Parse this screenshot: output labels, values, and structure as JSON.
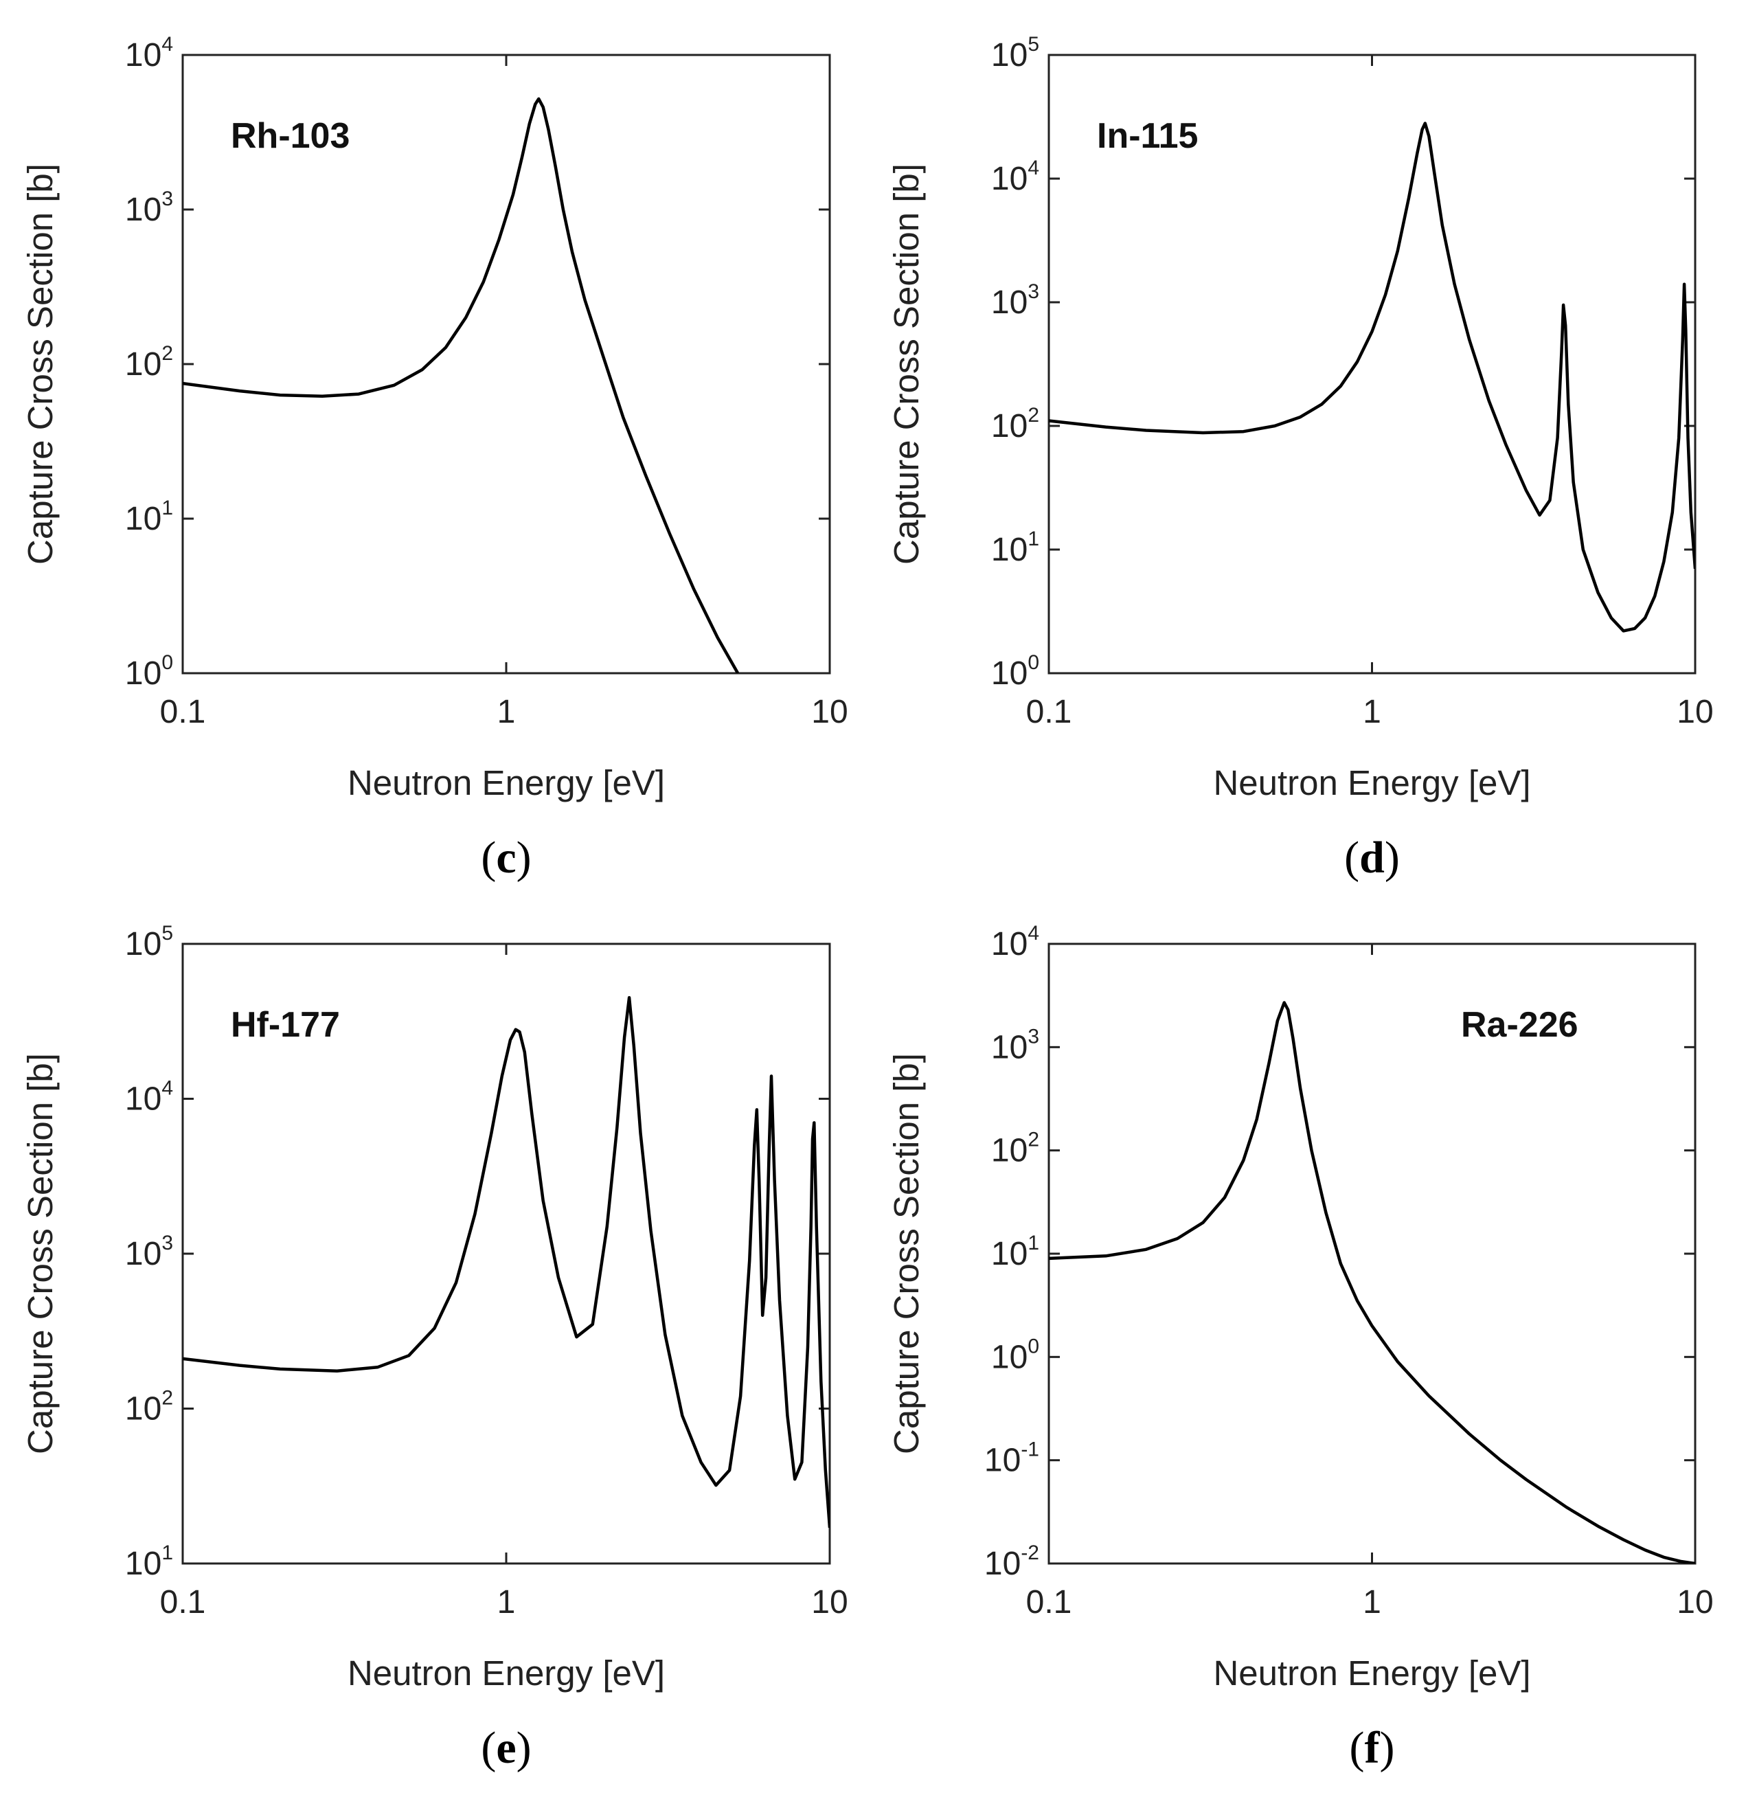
{
  "chart_data": [
    {
      "type": "line",
      "panel": "(c)",
      "panel_letter": "c",
      "nuclide": "Rh-103",
      "nuclide_position": "top-left",
      "xlabel": "Neutron Energy [eV]",
      "ylabel": "Capture Cross Section [b]",
      "xscale": "log",
      "yscale": "log",
      "xlim": [
        0.1,
        10
      ],
      "ylim": [
        1,
        10000
      ],
      "x_ticks": [
        0.1,
        1,
        10
      ],
      "x_tick_labels": [
        "0.1",
        "1",
        "10"
      ],
      "y_tick_exponents": [
        0,
        1,
        2,
        3,
        4
      ],
      "y_tick_labels": [
        "10^0",
        "10^1",
        "10^2",
        "10^3",
        "10^4"
      ],
      "color": "#000000",
      "series": [
        {
          "name": "Rh-103",
          "x": [
            0.1,
            0.15,
            0.2,
            0.27,
            0.35,
            0.45,
            0.55,
            0.65,
            0.75,
            0.85,
            0.95,
            1.05,
            1.12,
            1.18,
            1.23,
            1.26,
            1.3,
            1.35,
            1.42,
            1.5,
            1.6,
            1.75,
            2.0,
            2.3,
            2.7,
            3.2,
            3.8,
            4.5,
            5.2
          ],
          "y": [
            75,
            67,
            63,
            62,
            64,
            73,
            92,
            128,
            200,
            340,
            640,
            1250,
            2200,
            3600,
            4800,
            5200,
            4600,
            3300,
            1900,
            1000,
            530,
            260,
            110,
            45,
            19,
            8.0,
            3.5,
            1.7,
            1.0
          ]
        }
      ]
    },
    {
      "type": "line",
      "panel": "(d)",
      "panel_letter": "d",
      "nuclide": "In-115",
      "nuclide_position": "top-left",
      "xlabel": "Neutron Energy [eV]",
      "ylabel": "Capture Cross Section [b]",
      "xscale": "log",
      "yscale": "log",
      "xlim": [
        0.1,
        10
      ],
      "ylim": [
        1,
        100000
      ],
      "x_ticks": [
        0.1,
        1,
        10
      ],
      "x_tick_labels": [
        "0.1",
        "1",
        "10"
      ],
      "y_tick_exponents": [
        0,
        1,
        2,
        3,
        4,
        5
      ],
      "y_tick_labels": [
        "10^0",
        "10^1",
        "10^2",
        "10^3",
        "10^4",
        "10^5"
      ],
      "color": "#000000",
      "series": [
        {
          "name": "In-115",
          "x": [
            0.1,
            0.15,
            0.2,
            0.3,
            0.4,
            0.5,
            0.6,
            0.7,
            0.8,
            0.9,
            1.0,
            1.1,
            1.2,
            1.3,
            1.38,
            1.43,
            1.46,
            1.5,
            1.56,
            1.65,
            1.8,
            2.0,
            2.3,
            2.6,
            3.0,
            3.3,
            3.55,
            3.75,
            3.86,
            3.91,
            3.97,
            4.05,
            4.2,
            4.5,
            5.0,
            5.5,
            6.0,
            6.5,
            7.0,
            7.5,
            8.0,
            8.5,
            8.9,
            9.15,
            9.25,
            9.35,
            9.5,
            9.7,
            10.0
          ],
          "y": [
            110,
            98,
            92,
            88,
            90,
            100,
            118,
            150,
            210,
            330,
            580,
            1150,
            2600,
            7000,
            16000,
            25000,
            28000,
            22000,
            11000,
            4200,
            1400,
            500,
            160,
            70,
            30,
            19,
            25,
            80,
            400,
            950,
            650,
            150,
            35,
            10,
            4.5,
            2.8,
            2.2,
            2.3,
            2.8,
            4.2,
            8,
            20,
            80,
            500,
            1400,
            600,
            80,
            20,
            7
          ]
        }
      ]
    },
    {
      "type": "line",
      "panel": "(e)",
      "panel_letter": "e",
      "nuclide": "Hf-177",
      "nuclide_position": "top-left",
      "xlabel": "Neutron Energy [eV]",
      "ylabel": "Capture Cross Section [b]",
      "xscale": "log",
      "yscale": "log",
      "xlim": [
        0.1,
        10
      ],
      "ylim": [
        10,
        100000
      ],
      "x_ticks": [
        0.1,
        1,
        10
      ],
      "x_tick_labels": [
        "0.1",
        "1",
        "10"
      ],
      "y_tick_exponents": [
        1,
        2,
        3,
        4,
        5
      ],
      "y_tick_labels": [
        "10^1",
        "10^2",
        "10^3",
        "10^4",
        "10^5"
      ],
      "color": "#000000",
      "series": [
        {
          "name": "Hf-177",
          "x": [
            0.1,
            0.15,
            0.2,
            0.3,
            0.4,
            0.5,
            0.6,
            0.7,
            0.8,
            0.9,
            0.97,
            1.03,
            1.07,
            1.1,
            1.14,
            1.2,
            1.3,
            1.45,
            1.65,
            1.85,
            2.05,
            2.2,
            2.32,
            2.4,
            2.48,
            2.6,
            2.8,
            3.1,
            3.5,
            4.0,
            4.45,
            4.9,
            5.3,
            5.65,
            5.85,
            5.95,
            6.05,
            6.2,
            6.35,
            6.5,
            6.6,
            6.75,
            7.0,
            7.4,
            7.8,
            8.2,
            8.55,
            8.75,
            8.85,
            8.95,
            9.1,
            9.4,
            9.7,
            10.0
          ],
          "y": [
            210,
            190,
            180,
            175,
            185,
            220,
            330,
            650,
            1800,
            6000,
            14000,
            24000,
            28000,
            27000,
            20000,
            8000,
            2200,
            700,
            290,
            350,
            1500,
            6500,
            25000,
            45000,
            22000,
            6000,
            1400,
            300,
            90,
            45,
            32,
            40,
            120,
            900,
            5000,
            8500,
            3000,
            400,
            700,
            5000,
            14000,
            3000,
            500,
            90,
            35,
            45,
            250,
            1500,
            5500,
            7000,
            1500,
            150,
            40,
            17
          ]
        }
      ]
    },
    {
      "type": "line",
      "panel": "(f)",
      "panel_letter": "f",
      "nuclide": "Ra-226",
      "nuclide_position": "top-right",
      "xlabel": "Neutron Energy [eV]",
      "ylabel": "Capture Cross Section [b]",
      "xscale": "log",
      "yscale": "log",
      "xlim": [
        0.1,
        10
      ],
      "ylim": [
        0.01,
        10000
      ],
      "x_ticks": [
        0.1,
        1,
        10
      ],
      "x_tick_labels": [
        "0.1",
        "1",
        "10"
      ],
      "y_tick_exponents": [
        -2,
        -1,
        0,
        1,
        2,
        3,
        4
      ],
      "y_tick_labels": [
        "10^-2",
        "10^-1",
        "10^0",
        "10^1",
        "10^2",
        "10^3",
        "10^4"
      ],
      "color": "#000000",
      "series": [
        {
          "name": "Ra-226",
          "x": [
            0.1,
            0.15,
            0.2,
            0.25,
            0.3,
            0.35,
            0.4,
            0.44,
            0.48,
            0.51,
            0.535,
            0.55,
            0.57,
            0.6,
            0.65,
            0.72,
            0.8,
            0.9,
            1.0,
            1.2,
            1.5,
            2.0,
            2.5,
            3.0,
            4.0,
            5.0,
            6.0,
            7.0,
            8.0,
            9.0,
            10.0
          ],
          "y": [
            9,
            9.5,
            11,
            14,
            20,
            35,
            80,
            200,
            700,
            1800,
            2700,
            2300,
            1200,
            400,
            100,
            25,
            8,
            3.5,
            2.0,
            0.9,
            0.42,
            0.18,
            0.1,
            0.065,
            0.035,
            0.023,
            0.017,
            0.0135,
            0.0115,
            0.0105,
            0.01
          ]
        }
      ]
    }
  ]
}
